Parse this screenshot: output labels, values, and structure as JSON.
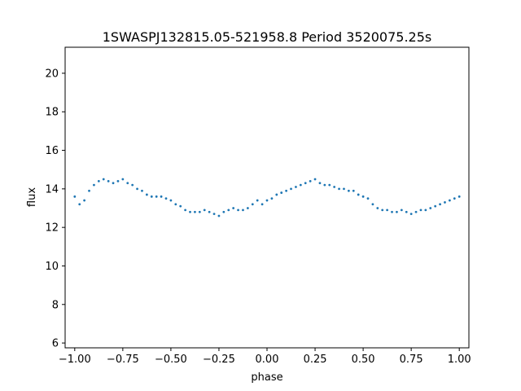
{
  "chart_data": {
    "type": "scatter",
    "title": "1SWASPJ132815.05-521958.8 Period 3520075.25s",
    "xlabel": "phase",
    "ylabel": "flux",
    "xlim": [
      -1.05,
      1.05
    ],
    "ylim": [
      5.75,
      21.35
    ],
    "xticks": [
      -1.0,
      -0.75,
      -0.5,
      -0.25,
      0.0,
      0.25,
      0.5,
      0.75,
      1.0
    ],
    "xtick_labels": [
      "−1.00",
      "−0.75",
      "−0.50",
      "−0.25",
      "0.00",
      "0.25",
      "0.50",
      "0.75",
      "1.00"
    ],
    "yticks": [
      6,
      8,
      10,
      12,
      14,
      16,
      18,
      20
    ],
    "ytick_labels": [
      "6",
      "8",
      "10",
      "12",
      "14",
      "16",
      "18",
      "20"
    ],
    "grid": false,
    "legend": "none",
    "marker_color": "#1f77b4",
    "series": [
      {
        "x": [
          -1.0,
          -0.975,
          -0.95,
          -0.925,
          -0.9,
          -0.875,
          -0.85,
          -0.825,
          -0.8,
          -0.775,
          -0.75,
          -0.725,
          -0.7,
          -0.675,
          -0.65,
          -0.625,
          -0.6,
          -0.575,
          -0.55,
          -0.525,
          -0.5,
          -0.475,
          -0.45,
          -0.425,
          -0.4,
          -0.375,
          -0.35,
          -0.325,
          -0.3,
          -0.275,
          -0.25,
          -0.225,
          -0.2,
          -0.175,
          -0.15,
          -0.125,
          -0.1,
          -0.075,
          -0.05,
          -0.025,
          0.0,
          0.025,
          0.05,
          0.075,
          0.1,
          0.125,
          0.15,
          0.175,
          0.2,
          0.225,
          0.25,
          0.275,
          0.3,
          0.325,
          0.35,
          0.375,
          0.4,
          0.425,
          0.45,
          0.475,
          0.5,
          0.525,
          0.55,
          0.575,
          0.6,
          0.625,
          0.65,
          0.675,
          0.7,
          0.725,
          0.75,
          0.775,
          0.8,
          0.825,
          0.85,
          0.875,
          0.9,
          0.925,
          0.95,
          0.975,
          1.0
        ],
        "y": [
          13.6,
          13.2,
          13.4,
          13.9,
          14.2,
          14.4,
          14.5,
          14.4,
          14.3,
          14.4,
          14.5,
          14.3,
          14.2,
          14.0,
          13.9,
          13.7,
          13.6,
          13.6,
          13.6,
          13.5,
          13.4,
          13.2,
          13.1,
          12.9,
          12.8,
          12.8,
          12.8,
          12.9,
          12.8,
          12.7,
          12.6,
          12.8,
          12.9,
          13.0,
          12.9,
          12.9,
          13.0,
          13.2,
          13.4,
          13.2,
          13.4,
          13.5,
          13.7,
          13.8,
          13.9,
          14.0,
          14.1,
          14.2,
          14.3,
          14.4,
          14.5,
          14.3,
          14.2,
          14.2,
          14.1,
          14.0,
          14.0,
          13.9,
          13.9,
          13.7,
          13.6,
          13.5,
          13.2,
          13.0,
          12.9,
          12.9,
          12.8,
          12.8,
          12.9,
          12.8,
          12.7,
          12.8,
          12.9,
          12.9,
          13.0,
          13.1,
          13.2,
          13.3,
          13.4,
          13.5,
          13.6
        ]
      }
    ]
  }
}
